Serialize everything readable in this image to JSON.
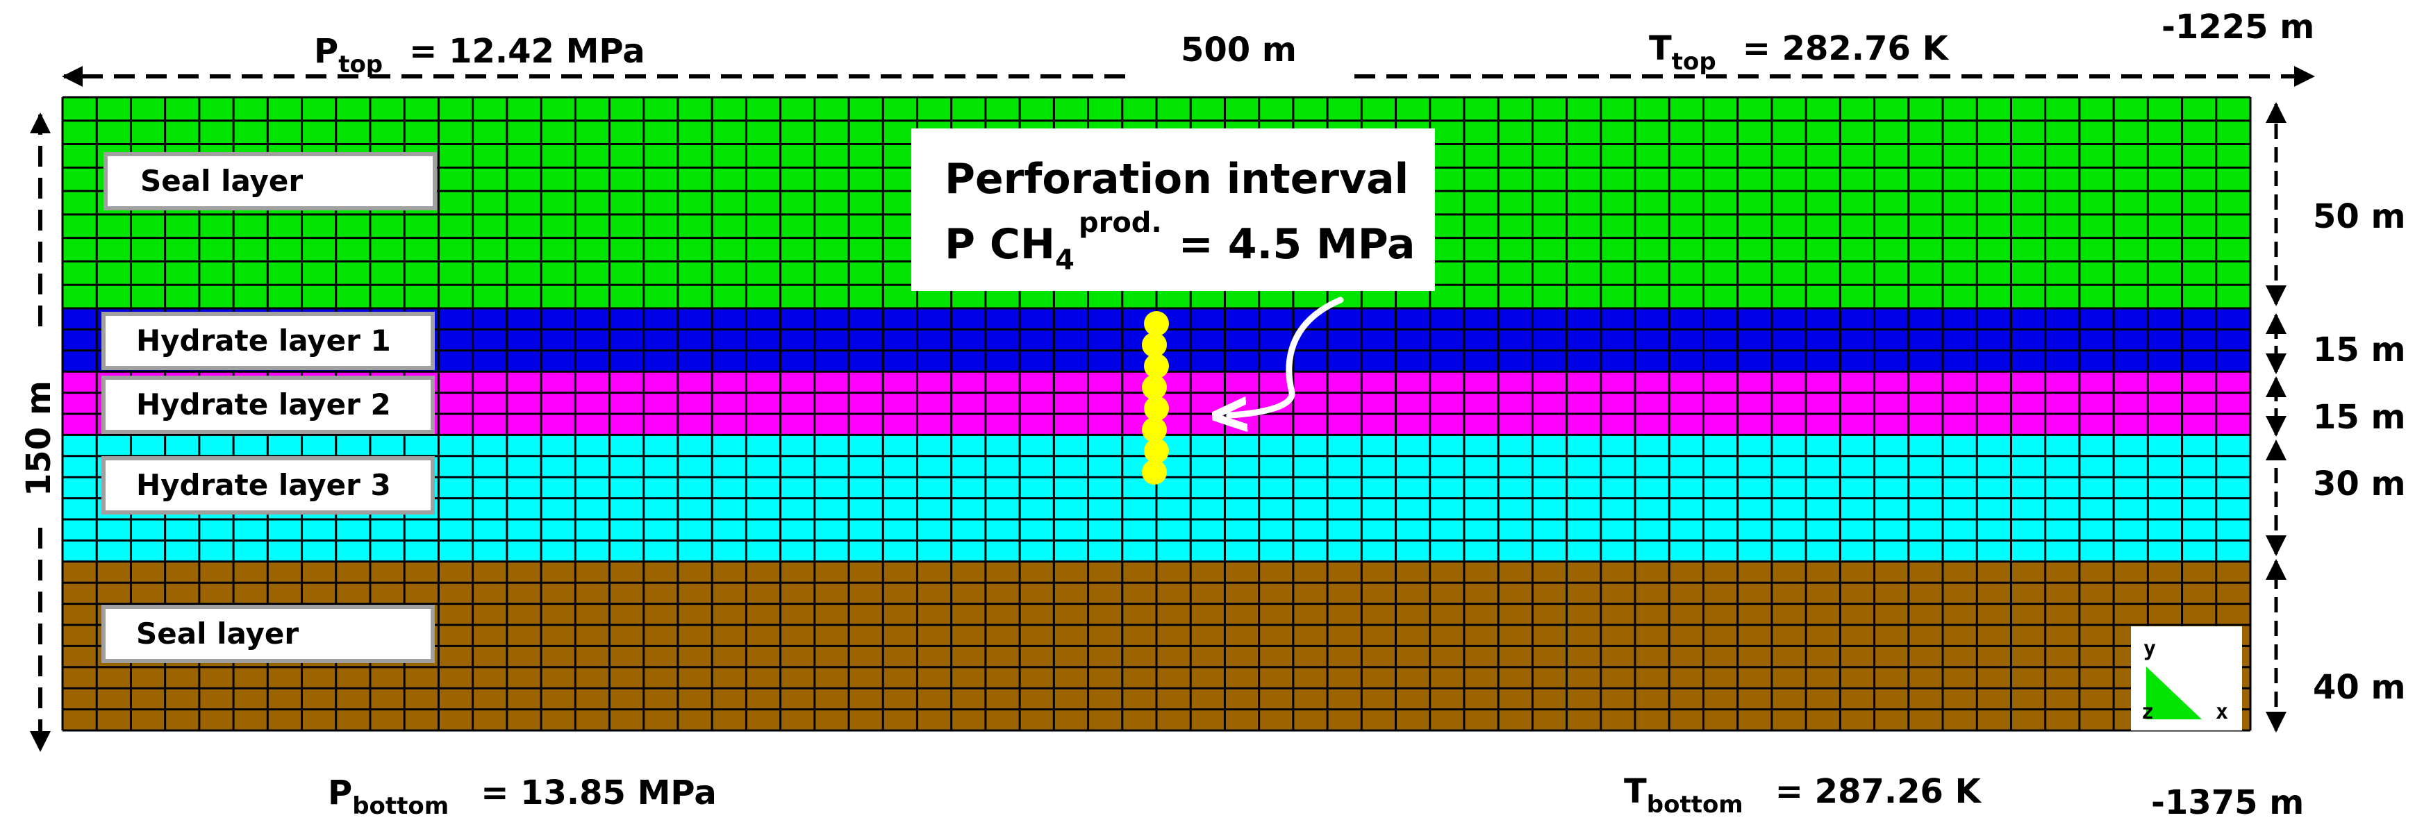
{
  "top_labels": {
    "p_top_symbol": "P",
    "p_top_sub": "top",
    "p_top_value": "= 12.42  MPa",
    "width_label": "500 m",
    "t_top_symbol": "T",
    "t_top_sub": "top",
    "t_top_value": "= 282.76 K",
    "top_depth": "-1225 m"
  },
  "bottom_labels": {
    "p_bottom_symbol": "P",
    "p_bottom_sub": "bottom",
    "p_bottom_value": "= 13.85 MPa",
    "t_bottom_symbol": "T",
    "t_bottom_sub": "bottom",
    "t_bottom_value": "= 287.26 K",
    "bottom_depth": "-1375 m"
  },
  "height_label": "150 m",
  "layers": [
    {
      "name": "Seal layer",
      "thickness_label": "50 m",
      "thickness_m": 50,
      "color": "#00e400"
    },
    {
      "name": "Hydrate layer 1",
      "thickness_label": "15 m",
      "thickness_m": 15,
      "color": "#0000e6"
    },
    {
      "name": "Hydrate layer 2",
      "thickness_label": "15 m",
      "thickness_m": 15,
      "color": "#ff00ff"
    },
    {
      "name": "Hydrate layer 3",
      "thickness_label": "30 m",
      "thickness_m": 30,
      "color": "#00ffff"
    },
    {
      "name": "Seal layer",
      "thickness_label": "40 m",
      "thickness_m": 40,
      "color": "#9c6400"
    }
  ],
  "perforation": {
    "title": "Perforation interval",
    "line_prefix": "P CH",
    "line_sub": "4",
    "line_sup": "prod.",
    "line_value": "= 4.5 MPa",
    "marker_color": "#ffff00",
    "marker_count": 8
  },
  "axes_triad": {
    "y": "y",
    "z": "z",
    "x": "x",
    "color": "#00e400"
  }
}
